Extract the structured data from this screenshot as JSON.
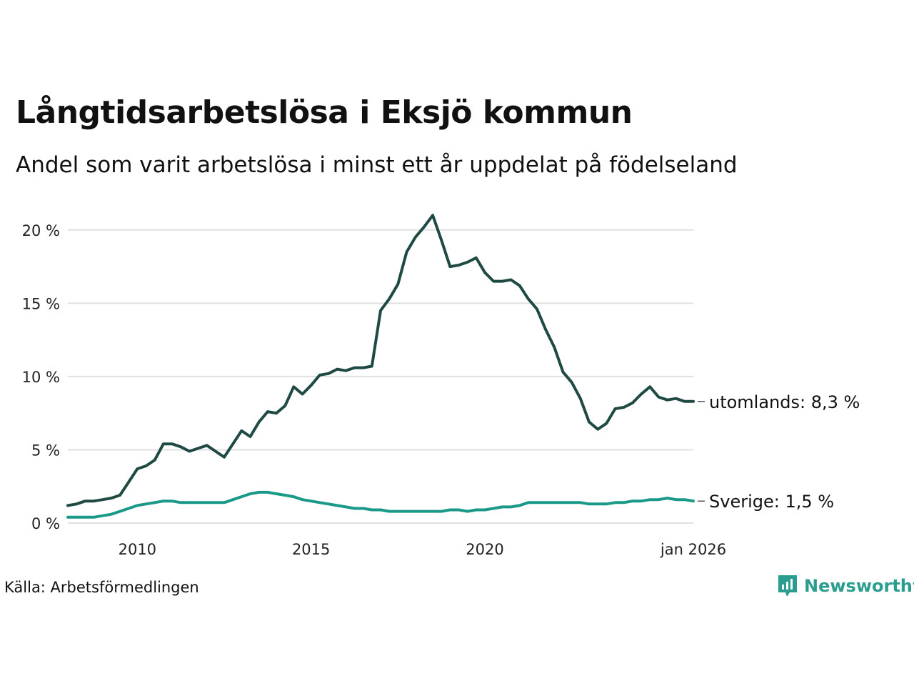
{
  "header": {
    "title": "Långtidsarbetslösa i Eksjö kommun",
    "subtitle": "Andel som varit arbetslösa i minst ett år uppdelat på födelseland"
  },
  "footer": {
    "source": "Källa: Arbetsförmedlingen",
    "brand": "Newsworthy"
  },
  "colors": {
    "foreign": "#1f4a44",
    "sweden": "#1a9988",
    "grid": "#e0e0e0",
    "brand": "#2a9d8f"
  },
  "chart_data": {
    "type": "line",
    "title": "Långtidsarbetslösa i Eksjö kommun",
    "subtitle": "Andel som varit arbetslösa i minst ett år uppdelat på födelseland",
    "xlabel": "",
    "ylabel": "",
    "xlim": [
      2008.0,
      2026.0
    ],
    "ylim": [
      0,
      21
    ],
    "y_ticks": [
      0,
      5,
      10,
      15,
      20
    ],
    "y_tick_labels": [
      "0 %",
      "5 %",
      "10 %",
      "15 %",
      "20 %"
    ],
    "x_ticks": [
      2010,
      2015,
      2020,
      2026
    ],
    "x_tick_labels": [
      "2010",
      "2015",
      "2020",
      "jan 2026"
    ],
    "grid": true,
    "series": [
      {
        "name": "utomlands",
        "end_label": "utomlands: 8,3 %",
        "x": [
          2008.0,
          2008.25,
          2008.5,
          2008.75,
          2009.0,
          2009.25,
          2009.5,
          2009.75,
          2010.0,
          2010.25,
          2010.5,
          2010.75,
          2011.0,
          2011.25,
          2011.5,
          2011.75,
          2012.0,
          2012.25,
          2012.5,
          2012.75,
          2013.0,
          2013.25,
          2013.5,
          2013.75,
          2014.0,
          2014.25,
          2014.5,
          2014.75,
          2015.0,
          2015.25,
          2015.5,
          2015.75,
          2016.0,
          2016.25,
          2016.5,
          2016.75,
          2017.0,
          2017.25,
          2017.5,
          2017.75,
          2018.0,
          2018.25,
          2018.5,
          2018.75,
          2019.0,
          2019.25,
          2019.5,
          2019.75,
          2020.0,
          2020.25,
          2020.5,
          2020.75,
          2021.0,
          2021.25,
          2021.5,
          2021.75,
          2022.0,
          2022.25,
          2022.5,
          2022.75,
          2023.0,
          2023.25,
          2023.5,
          2023.75,
          2024.0,
          2024.25,
          2024.5,
          2024.75,
          2025.0,
          2025.25,
          2025.5,
          2025.75,
          2026.0
        ],
        "values": [
          1.2,
          1.3,
          1.5,
          1.5,
          1.6,
          1.7,
          1.9,
          2.8,
          3.7,
          3.9,
          4.3,
          5.4,
          5.4,
          5.2,
          4.9,
          5.1,
          5.3,
          4.9,
          4.5,
          5.4,
          6.3,
          5.9,
          6.9,
          7.6,
          7.5,
          8.0,
          9.3,
          8.8,
          9.4,
          10.1,
          10.2,
          10.5,
          10.4,
          10.6,
          10.6,
          10.7,
          14.5,
          15.3,
          16.3,
          18.5,
          19.5,
          20.2,
          21.0,
          19.3,
          17.5,
          17.6,
          17.8,
          18.1,
          17.1,
          16.5,
          16.5,
          16.6,
          16.2,
          15.3,
          14.6,
          13.2,
          12.0,
          10.3,
          9.6,
          8.5,
          6.9,
          6.4,
          6.8,
          7.8,
          7.9,
          8.2,
          8.8,
          9.3,
          8.6,
          8.4,
          8.5,
          8.3,
          8.3
        ]
      },
      {
        "name": "Sverige",
        "end_label": "Sverige: 1,5 %",
        "x": [
          2008.0,
          2008.25,
          2008.5,
          2008.75,
          2009.0,
          2009.25,
          2009.5,
          2009.75,
          2010.0,
          2010.25,
          2010.5,
          2010.75,
          2011.0,
          2011.25,
          2011.5,
          2011.75,
          2012.0,
          2012.25,
          2012.5,
          2012.75,
          2013.0,
          2013.25,
          2013.5,
          2013.75,
          2014.0,
          2014.25,
          2014.5,
          2014.75,
          2015.0,
          2015.25,
          2015.5,
          2015.75,
          2016.0,
          2016.25,
          2016.5,
          2016.75,
          2017.0,
          2017.25,
          2017.5,
          2017.75,
          2018.0,
          2018.25,
          2018.5,
          2018.75,
          2019.0,
          2019.25,
          2019.5,
          2019.75,
          2020.0,
          2020.25,
          2020.5,
          2020.75,
          2021.0,
          2021.25,
          2021.5,
          2021.75,
          2022.0,
          2022.25,
          2022.5,
          2022.75,
          2023.0,
          2023.25,
          2023.5,
          2023.75,
          2024.0,
          2024.25,
          2024.5,
          2024.75,
          2025.0,
          2025.25,
          2025.5,
          2025.75,
          2026.0
        ],
        "values": [
          0.4,
          0.4,
          0.4,
          0.4,
          0.5,
          0.6,
          0.8,
          1.0,
          1.2,
          1.3,
          1.4,
          1.5,
          1.5,
          1.4,
          1.4,
          1.4,
          1.4,
          1.4,
          1.4,
          1.6,
          1.8,
          2.0,
          2.1,
          2.1,
          2.0,
          1.9,
          1.8,
          1.6,
          1.5,
          1.4,
          1.3,
          1.2,
          1.1,
          1.0,
          1.0,
          0.9,
          0.9,
          0.8,
          0.8,
          0.8,
          0.8,
          0.8,
          0.8,
          0.8,
          0.9,
          0.9,
          0.8,
          0.9,
          0.9,
          1.0,
          1.1,
          1.1,
          1.2,
          1.4,
          1.4,
          1.4,
          1.4,
          1.4,
          1.4,
          1.4,
          1.3,
          1.3,
          1.3,
          1.4,
          1.4,
          1.5,
          1.5,
          1.6,
          1.6,
          1.7,
          1.6,
          1.6,
          1.5
        ]
      }
    ]
  }
}
